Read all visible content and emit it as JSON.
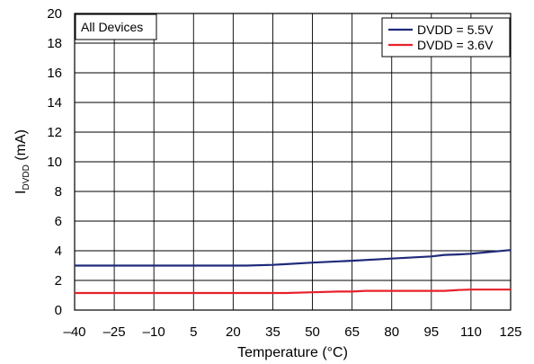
{
  "chart_data": {
    "type": "line",
    "xlabel": "Temperature (°C)",
    "ylabel_main": "I",
    "ylabel_sub": "DVDD",
    "ylabel_unit": " (mA)",
    "annotation": "All Devices",
    "xlim": [
      -40,
      125
    ],
    "ylim": [
      0,
      20
    ],
    "grid": true,
    "legend_position": "top-right",
    "x_ticks": [
      -40,
      -25,
      -10,
      5,
      20,
      35,
      50,
      65,
      80,
      95,
      110,
      125
    ],
    "x_tick_labels": [
      "–40",
      "–25",
      "–10",
      "5",
      "20",
      "35",
      "50",
      "65",
      "80",
      "95",
      "110",
      "125"
    ],
    "y_ticks": [
      0,
      2,
      4,
      6,
      8,
      10,
      12,
      14,
      16,
      18,
      20
    ],
    "y_tick_labels": [
      "0",
      "2",
      "4",
      "6",
      "8",
      "10",
      "12",
      "14",
      "16",
      "18",
      "20"
    ],
    "series": [
      {
        "name": "DVDD = 5.5V",
        "color": "#1f2a7a",
        "x": [
          -40,
          -25,
          -10,
          5,
          20,
          25,
          35,
          40,
          50,
          65,
          80,
          95,
          100,
          105,
          110,
          125
        ],
        "y": [
          3.0,
          3.0,
          3.0,
          3.0,
          3.0,
          3.0,
          3.05,
          3.1,
          3.2,
          3.33,
          3.47,
          3.62,
          3.72,
          3.75,
          3.8,
          4.05
        ]
      },
      {
        "name": "DVDD = 3.6V",
        "color": "#e8202a",
        "x": [
          -40,
          -25,
          -10,
          5,
          20,
          35,
          40,
          50,
          60,
          65,
          70,
          85,
          100,
          105,
          110,
          125
        ],
        "y": [
          1.15,
          1.15,
          1.15,
          1.15,
          1.15,
          1.15,
          1.15,
          1.2,
          1.25,
          1.25,
          1.3,
          1.3,
          1.3,
          1.35,
          1.38,
          1.38
        ]
      }
    ]
  }
}
